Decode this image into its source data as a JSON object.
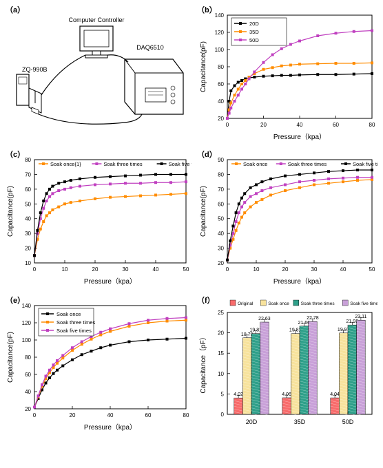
{
  "panels": {
    "a": {
      "label": "（a）"
    },
    "b": {
      "label": "（b）",
      "xlabel": "Pressure（kpa）",
      "ylabel": "Capacitance(pF)",
      "xlim": [
        0,
        80
      ],
      "ylim": [
        20,
        140
      ],
      "xtick_step": 20,
      "ytick_step": 20,
      "series": [
        {
          "name": "20D",
          "color": "#000000",
          "x": [
            0,
            1,
            2,
            4,
            6,
            8,
            10,
            12,
            15,
            20,
            25,
            30,
            35,
            40,
            50,
            60,
            70,
            80
          ],
          "y": [
            20,
            40,
            52,
            58,
            62,
            64,
            66,
            67,
            68,
            69,
            69.5,
            70,
            70,
            70.5,
            71,
            71,
            71.5,
            72
          ]
        },
        {
          "name": "35D",
          "color": "#ff8c00",
          "x": [
            0,
            1,
            2,
            4,
            6,
            8,
            10,
            12,
            15,
            20,
            25,
            30,
            35,
            40,
            50,
            60,
            70,
            80
          ],
          "y": [
            20,
            30,
            38,
            47,
            54,
            60,
            64,
            68,
            72,
            77,
            79,
            81,
            82,
            83,
            83.5,
            84,
            84,
            84.5
          ]
        },
        {
          "name": "50D",
          "color": "#c040c0",
          "x": [
            0,
            1,
            2,
            4,
            6,
            8,
            10,
            12,
            15,
            20,
            25,
            30,
            35,
            40,
            50,
            60,
            70,
            80
          ],
          "y": [
            20,
            26,
            32,
            40,
            47,
            54,
            60,
            66,
            74,
            85,
            94,
            101,
            106,
            110,
            116,
            119,
            121,
            122
          ]
        }
      ],
      "legend_pos": "top-left-inside"
    },
    "c": {
      "label": "（c）",
      "xlabel": "Pressure（kpa）",
      "ylabel": "Capacitance(pF)",
      "xlim": [
        0,
        50
      ],
      "ylim": [
        10,
        80
      ],
      "xtick_step": 10,
      "ytick_step": 10,
      "series": [
        {
          "name": "Soak once{1}",
          "color": "#ff8c00",
          "x": [
            0,
            1,
            2,
            3,
            4,
            5,
            6,
            8,
            10,
            12,
            15,
            20,
            25,
            30,
            35,
            40,
            45,
            50
          ],
          "y": [
            15,
            26,
            33,
            38,
            42,
            44,
            46,
            48,
            50,
            51,
            52,
            53.5,
            54.5,
            55,
            55.5,
            56,
            56.5,
            57
          ]
        },
        {
          "name": "Soak three times",
          "color": "#c040c0",
          "x": [
            0,
            1,
            2,
            3,
            4,
            5,
            6,
            8,
            10,
            12,
            15,
            20,
            25,
            30,
            35,
            40,
            45,
            50
          ],
          "y": [
            15,
            30,
            40,
            47,
            52,
            55,
            57,
            59,
            60,
            61,
            62,
            63,
            63.5,
            64,
            64,
            64.5,
            64.5,
            65
          ]
        },
        {
          "name": "Soak five times",
          "color": "#000000",
          "x": [
            0,
            1,
            2,
            3,
            4,
            5,
            6,
            8,
            10,
            12,
            15,
            20,
            25,
            30,
            35,
            40,
            45,
            50
          ],
          "y": [
            15,
            32,
            44,
            52,
            57,
            60,
            62,
            64,
            65,
            66,
            67,
            68,
            68.5,
            69,
            69.5,
            70,
            70,
            70
          ]
        }
      ],
      "legend_pos": "top"
    },
    "d": {
      "label": "（d）",
      "xlabel": "Pressure（kpa）",
      "ylabel": "Capacitance(pF)",
      "xlim": [
        0,
        50
      ],
      "ylim": [
        20,
        90
      ],
      "xtick_step": 10,
      "ytick_step": 10,
      "series": [
        {
          "name": "Soak once",
          "color": "#ff8c00",
          "x": [
            0,
            1,
            2,
            3,
            4,
            5,
            6,
            8,
            10,
            12,
            15,
            20,
            25,
            30,
            35,
            40,
            45,
            50
          ],
          "y": [
            22,
            30,
            36,
            42,
            47,
            51,
            54,
            58,
            61,
            63,
            66,
            69,
            71,
            73,
            74,
            75,
            76,
            76.5
          ]
        },
        {
          "name": "Soak three times",
          "color": "#c040c0",
          "x": [
            0,
            1,
            2,
            3,
            4,
            5,
            6,
            8,
            10,
            12,
            15,
            20,
            25,
            30,
            35,
            40,
            45,
            50
          ],
          "y": [
            22,
            32,
            40,
            48,
            54,
            58,
            61,
            65,
            67,
            69,
            71,
            73,
            75,
            76,
            77,
            77.5,
            78,
            78
          ]
        },
        {
          "name": "Soak five times",
          "color": "#000000",
          "x": [
            0,
            1,
            2,
            3,
            4,
            5,
            6,
            8,
            10,
            12,
            15,
            20,
            25,
            30,
            35,
            40,
            45,
            50
          ],
          "y": [
            22,
            35,
            45,
            54,
            60,
            64,
            67,
            71,
            73,
            75,
            77,
            79,
            80,
            81,
            82,
            82.5,
            83,
            83
          ]
        }
      ],
      "legend_pos": "top"
    },
    "e": {
      "label": "（e）",
      "xlabel": "Pressure（kpa）",
      "ylabel": "Capacitance(pF)",
      "xlim": [
        0,
        80
      ],
      "ylim": [
        20,
        140
      ],
      "xtick_step": 20,
      "ytick_step": 20,
      "series": [
        {
          "name": "Soak once",
          "color": "#000000",
          "x": [
            0,
            2,
            4,
            6,
            8,
            10,
            12,
            15,
            20,
            25,
            30,
            35,
            40,
            50,
            60,
            70,
            80
          ],
          "y": [
            22,
            32,
            42,
            50,
            56,
            61,
            65,
            70,
            77,
            83,
            87,
            91,
            94,
            98,
            100,
            101,
            102
          ]
        },
        {
          "name": "Soak three times",
          "color": "#ff8c00",
          "x": [
            0,
            2,
            4,
            6,
            8,
            10,
            12,
            15,
            20,
            25,
            30,
            35,
            40,
            50,
            60,
            70,
            80
          ],
          "y": [
            22,
            34,
            46,
            55,
            62,
            68,
            73,
            79,
            88,
            95,
            101,
            106,
            110,
            116,
            120,
            122,
            123
          ]
        },
        {
          "name": "Soak five times",
          "color": "#c040c0",
          "x": [
            0,
            2,
            4,
            6,
            8,
            10,
            12,
            15,
            20,
            25,
            30,
            35,
            40,
            50,
            60,
            70,
            80
          ],
          "y": [
            22,
            35,
            48,
            58,
            65,
            71,
            76,
            82,
            91,
            98,
            104,
            109,
            113,
            119,
            123,
            125,
            126
          ]
        }
      ],
      "legend_pos": "top-left-inside"
    },
    "f": {
      "label": "（f）",
      "xlabel": "",
      "ylabel": "Capacitance（pF）",
      "groups": [
        "20D",
        "35D",
        "50D"
      ],
      "ylim": [
        0,
        25
      ],
      "ytick_step": 5,
      "series": [
        {
          "name": "Original",
          "color": "#f86b6b",
          "values": [
            4.02,
            4.06,
            4.04
          ]
        },
        {
          "name": "Soak once",
          "color": "#f7e29c",
          "values": [
            18.79,
            19.81,
            19.97
          ]
        },
        {
          "name": "Soak three times",
          "color": "#2fa08a",
          "values": [
            19.81,
            21.66,
            21.93
          ]
        },
        {
          "name": "Soak five times",
          "color": "#c8a0d8",
          "values": [
            22.63,
            22.78,
            23.11
          ]
        }
      ],
      "bar_width": 0.18,
      "background_color": "#ffffff",
      "label_fontsize": 7
    }
  },
  "diagram_a": {
    "labels": {
      "computer": "Computer Controller",
      "daq": "DAQ6510",
      "zq": "ZQ-990B"
    }
  },
  "global": {
    "axis_color": "#000000",
    "tick_fontsize": 8,
    "label_fontsize": 10,
    "legend_fontsize": 7.5,
    "line_width": 1.2,
    "marker_size": 2
  }
}
